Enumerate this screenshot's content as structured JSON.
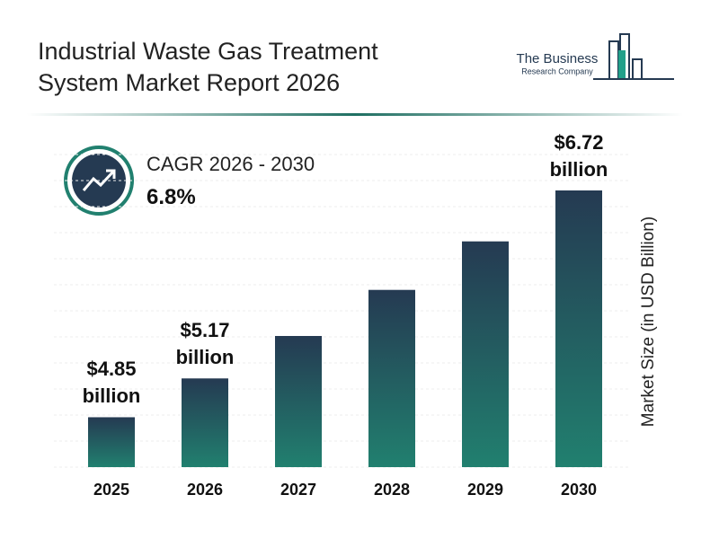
{
  "chart_data": {
    "type": "bar",
    "title": "Industrial Waste Gas Treatment System Market Report 2026",
    "logo_name": "The Business",
    "logo_tagline": "Research Company",
    "cagr_label": "CAGR 2026 - 2030",
    "cagr_value": "6.8%",
    "ylabel": "Market Size (in USD Billion)",
    "categories": [
      "2025",
      "2026",
      "2027",
      "2028",
      "2029",
      "2030"
    ],
    "values": [
      4.85,
      5.17,
      5.52,
      5.9,
      6.3,
      6.72
    ],
    "value_labels": [
      "$4.85 billion",
      "$5.17 billion",
      null,
      null,
      null,
      "$6.72 billion"
    ],
    "color_top": "#253a52",
    "color_bottom": "#21806f",
    "grid": true
  }
}
